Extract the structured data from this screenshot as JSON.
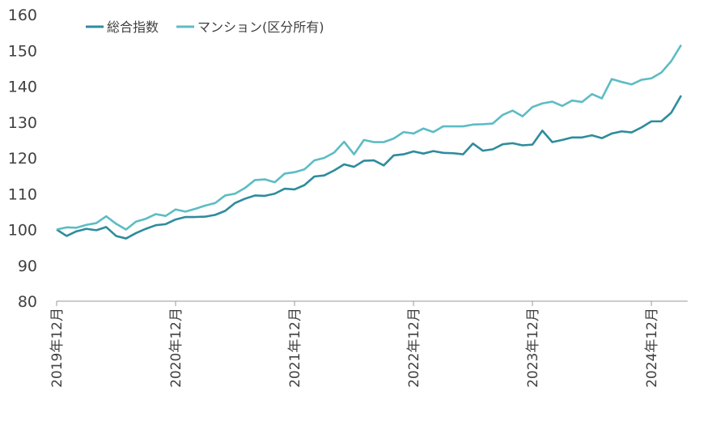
{
  "chart_data": {
    "type": "line",
    "categories": [
      "2019年12月",
      null,
      null,
      null,
      null,
      null,
      null,
      null,
      null,
      null,
      null,
      null,
      "2020年12月",
      null,
      null,
      null,
      null,
      null,
      null,
      null,
      null,
      null,
      null,
      null,
      "2021年12月",
      null,
      null,
      null,
      null,
      null,
      null,
      null,
      null,
      null,
      null,
      null,
      "2022年12月",
      null,
      null,
      null,
      null,
      null,
      null,
      null,
      null,
      null,
      null,
      null,
      "2023年12月",
      null,
      null,
      null,
      null,
      null,
      null,
      null,
      null,
      null,
      null,
      null,
      "2024年12月",
      null,
      null,
      null
    ],
    "series": [
      {
        "name": "総合指数",
        "color": "#2e8c9c",
        "values": [
          100,
          98.2,
          99.5,
          100.2,
          99.8,
          100.7,
          98.2,
          97.5,
          99,
          100.2,
          101.2,
          101.5,
          102.8,
          103.5,
          103.5,
          103.6,
          104.1,
          105.2,
          107.4,
          108.6,
          109.5,
          109.4,
          110,
          111.4,
          111.2,
          112.4,
          114.8,
          115.1,
          116.5,
          118.2,
          117.5,
          119.2,
          119.3,
          117.9,
          120.7,
          121,
          121.8,
          121.2,
          121.9,
          121.4,
          121.3,
          121,
          124,
          122,
          122.4,
          123.8,
          124.1,
          123.5,
          123.7,
          127.6,
          124.4,
          125,
          125.7,
          125.7,
          126.3,
          125.5,
          126.8,
          127.4,
          127.1,
          128.5,
          130.2,
          130.2,
          132.6,
          137.4
        ]
      },
      {
        "name": "マンション(区分所有)",
        "color": "#5dbcc4",
        "values": [
          100,
          100.6,
          100.5,
          101.3,
          101.8,
          103.7,
          101.6,
          100,
          102.2,
          103,
          104.3,
          103.8,
          105.6,
          105,
          105.8,
          106.7,
          107.4,
          109.5,
          110,
          111.6,
          113.8,
          114,
          113.2,
          115.6,
          116,
          116.8,
          119.3,
          120,
          121.5,
          124.5,
          121,
          125,
          124.4,
          124.4,
          125.4,
          127.2,
          126.8,
          128.2,
          127.2,
          128.8,
          128.8,
          128.8,
          129.3,
          129.4,
          129.6,
          132,
          133.2,
          131.6,
          134.2,
          135.2,
          135.7,
          134.5,
          136,
          135.6,
          137.8,
          136.6,
          142,
          141.2,
          140.5,
          141.8,
          142.2,
          143.8,
          147,
          151.5
        ]
      }
    ],
    "ylim": [
      80,
      160
    ],
    "yticks": [
      80,
      90,
      100,
      110,
      120,
      130,
      140,
      150,
      160
    ],
    "grid": false,
    "legend": "top-left"
  }
}
